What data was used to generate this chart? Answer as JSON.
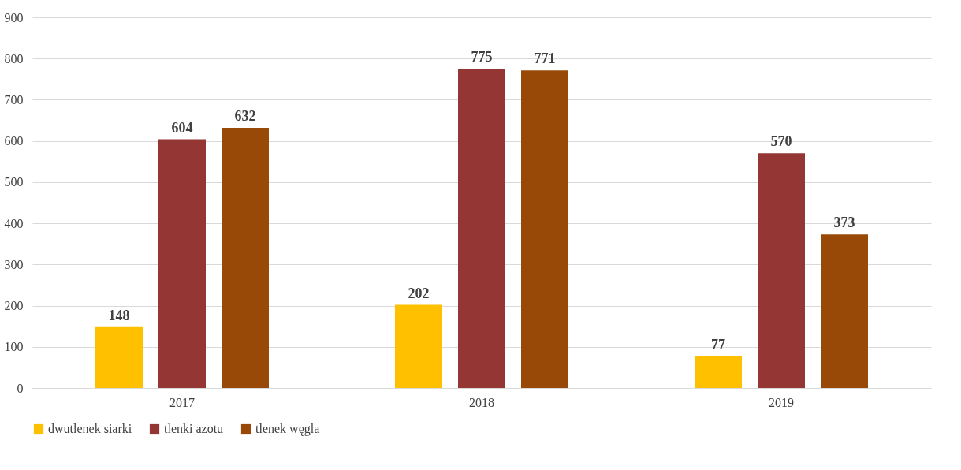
{
  "chart_data": {
    "type": "bar",
    "categories": [
      "2017",
      "2018",
      "2019"
    ],
    "series": [
      {
        "name": "dwutlenek siarki",
        "color": "#ffc000",
        "values": [
          148,
          202,
          77
        ]
      },
      {
        "name": "tlenki azotu",
        "color": "#943634",
        "values": [
          604,
          775,
          570
        ]
      },
      {
        "name": "tlenek węgla",
        "color": "#984807",
        "values": [
          632,
          771,
          373
        ]
      }
    ],
    "ylim": [
      0,
      900
    ],
    "yticks": [
      0,
      100,
      200,
      300,
      400,
      500,
      600,
      700,
      800,
      900
    ],
    "grid": "y",
    "legend": "bottom",
    "data_labels": true
  }
}
